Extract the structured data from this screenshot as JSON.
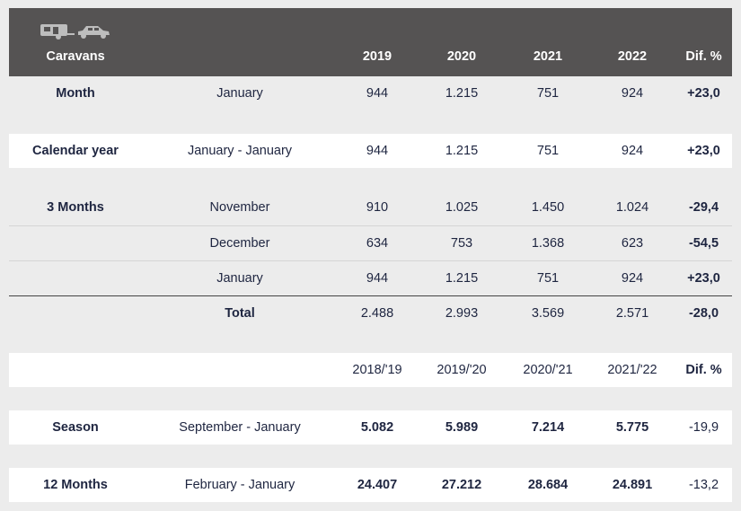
{
  "header": {
    "label": "Caravans",
    "years": [
      "2019",
      "2020",
      "2021",
      "2022"
    ],
    "diff_label": "Dif. %",
    "icons": [
      "caravan-icon",
      "car-icon"
    ]
  },
  "month": {
    "label": "Month",
    "period": "January",
    "values": [
      "944",
      "1.215",
      "751",
      "924"
    ],
    "diff": "+23,0"
  },
  "calendar_year": {
    "label": "Calendar year",
    "period": "January - January",
    "values": [
      "944",
      "1.215",
      "751",
      "924"
    ],
    "diff": "+23,0"
  },
  "three_months": {
    "label": "3 Months",
    "rows": [
      {
        "period": "November",
        "values": [
          "910",
          "1.025",
          "1.450",
          "1.024"
        ],
        "diff": "-29,4"
      },
      {
        "period": "December",
        "values": [
          "634",
          "753",
          "1.368",
          "623"
        ],
        "diff": "-54,5"
      },
      {
        "period": "January",
        "values": [
          "944",
          "1.215",
          "751",
          "924"
        ],
        "diff": "+23,0"
      }
    ],
    "total": {
      "label": "Total",
      "values": [
        "2.488",
        "2.993",
        "3.569",
        "2.571"
      ],
      "diff": "-28,0"
    }
  },
  "season_header": {
    "years": [
      "2018/'19",
      "2019/'20",
      "2020/'21",
      "2021/'22"
    ],
    "diff_label": "Dif. %"
  },
  "season": {
    "label": "Season",
    "period": "September - January",
    "values": [
      "5.082",
      "5.989",
      "7.214",
      "5.775"
    ],
    "diff": "-19,9"
  },
  "twelve_months": {
    "label": "12 Months",
    "period": "February - January",
    "values": [
      "24.407",
      "27.212",
      "28.684",
      "24.891"
    ],
    "diff": "-13,2"
  }
}
